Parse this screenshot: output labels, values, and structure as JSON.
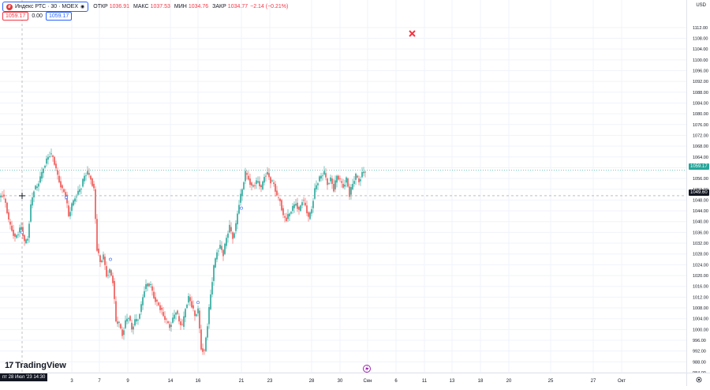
{
  "legend": {
    "symbol": "Индекс РТС · 30 · MOEX",
    "ohlc": [
      {
        "k": "ОТКР",
        "v": "1036.91"
      },
      {
        "k": "МАКС",
        "v": "1037.53"
      },
      {
        "k": "МИН",
        "v": "1034.76"
      },
      {
        "k": "ЗАКР",
        "v": "1034.77"
      }
    ],
    "change": "−2.14 (−0.21%)",
    "row2": {
      "price_red": "1059.17",
      "zero": "0.00",
      "price_blue": "1059.17"
    }
  },
  "currency": "USD",
  "logo_text": "TradingView",
  "crosshair_date": "пт 28 Июл '23  14:30",
  "last_price_tag": "1059.17",
  "crosshair_price_tag": "1049.60",
  "colors": {
    "up": "#26a69a",
    "down": "#ef5350",
    "accent": "#2962ff"
  },
  "chart_data": {
    "type": "candlestick",
    "ylim": [
      984,
      1114
    ],
    "yticks": [
      "1112.00",
      "1108.00",
      "1104.00",
      "1100.00",
      "1096.00",
      "1092.00",
      "1088.00",
      "1084.00",
      "1080.00",
      "1076.00",
      "1072.00",
      "1068.00",
      "1064.00",
      "1060.00",
      "1056.00",
      "1052.00",
      "1048.00",
      "1044.00",
      "1040.00",
      "1036.00",
      "1032.00",
      "1028.00",
      "1024.00",
      "1020.00",
      "1016.00",
      "1012.00",
      "1008.00",
      "1004.00",
      "1000.00",
      "996.00",
      "992.00",
      "988.00",
      "984.00"
    ],
    "xticks": [
      "3",
      "7",
      "9",
      "14",
      "16",
      "21",
      "23",
      "28",
      "30",
      "Сен",
      "6",
      "11",
      "13",
      "18",
      "20",
      "25",
      "27",
      "Окт"
    ],
    "path_points": [
      [
        0,
        1049
      ],
      [
        4,
        1050
      ],
      [
        8,
        1047
      ],
      [
        12,
        1040
      ],
      [
        16,
        1037
      ],
      [
        20,
        1034
      ],
      [
        24,
        1036
      ],
      [
        28,
        1038
      ],
      [
        32,
        1032
      ],
      [
        36,
        1034
      ],
      [
        40,
        1046
      ],
      [
        44,
        1052
      ],
      [
        48,
        1053
      ],
      [
        52,
        1056
      ],
      [
        56,
        1060
      ],
      [
        60,
        1063
      ],
      [
        64,
        1065
      ],
      [
        68,
        1064
      ],
      [
        72,
        1059
      ],
      [
        76,
        1055
      ],
      [
        80,
        1052
      ],
      [
        84,
        1050
      ],
      [
        88,
        1042
      ],
      [
        92,
        1046
      ],
      [
        96,
        1049
      ],
      [
        100,
        1051
      ],
      [
        104,
        1053
      ],
      [
        108,
        1057
      ],
      [
        112,
        1058
      ],
      [
        116,
        1056
      ],
      [
        120,
        1052
      ],
      [
        124,
        1030
      ],
      [
        128,
        1025
      ],
      [
        132,
        1027
      ],
      [
        136,
        1020
      ],
      [
        140,
        1022
      ],
      [
        144,
        1018
      ],
      [
        148,
        1003
      ],
      [
        152,
        1002
      ],
      [
        156,
        998
      ],
      [
        160,
        1003
      ],
      [
        164,
        1005
      ],
      [
        168,
        1000
      ],
      [
        172,
        1003
      ],
      [
        176,
        1004
      ],
      [
        180,
        1009
      ],
      [
        184,
        1015
      ],
      [
        188,
        1017
      ],
      [
        192,
        1016
      ],
      [
        196,
        1012
      ],
      [
        200,
        1010
      ],
      [
        204,
        1008
      ],
      [
        208,
        1005
      ],
      [
        212,
        1003
      ],
      [
        216,
        1001
      ],
      [
        220,
        1004
      ],
      [
        224,
        1007
      ],
      [
        228,
        1003
      ],
      [
        232,
        1001
      ],
      [
        236,
        1008
      ],
      [
        240,
        1012
      ],
      [
        244,
        1009
      ],
      [
        248,
        1005
      ],
      [
        252,
        1007
      ],
      [
        256,
        993
      ],
      [
        260,
        992
      ],
      [
        264,
        1002
      ],
      [
        268,
        1013
      ],
      [
        272,
        1023
      ],
      [
        276,
        1029
      ],
      [
        280,
        1031
      ],
      [
        284,
        1028
      ],
      [
        288,
        1034
      ],
      [
        292,
        1038
      ],
      [
        296,
        1034
      ],
      [
        300,
        1039
      ],
      [
        304,
        1047
      ],
      [
        308,
        1052
      ],
      [
        312,
        1058
      ],
      [
        316,
        1056
      ],
      [
        320,
        1053
      ],
      [
        324,
        1054
      ],
      [
        328,
        1055
      ],
      [
        332,
        1052
      ],
      [
        336,
        1057
      ],
      [
        340,
        1058
      ],
      [
        344,
        1055
      ],
      [
        348,
        1054
      ],
      [
        352,
        1049
      ],
      [
        356,
        1048
      ],
      [
        360,
        1042
      ],
      [
        364,
        1041
      ],
      [
        368,
        1043
      ],
      [
        372,
        1045
      ],
      [
        376,
        1047
      ],
      [
        380,
        1044
      ],
      [
        384,
        1048
      ],
      [
        388,
        1046
      ],
      [
        392,
        1041
      ],
      [
        396,
        1045
      ],
      [
        400,
        1052
      ],
      [
        404,
        1055
      ],
      [
        408,
        1057
      ],
      [
        412,
        1058
      ],
      [
        416,
        1054
      ],
      [
        420,
        1056
      ],
      [
        424,
        1052
      ],
      [
        428,
        1057
      ],
      [
        432,
        1055
      ],
      [
        436,
        1053
      ],
      [
        440,
        1056
      ],
      [
        444,
        1050
      ],
      [
        448,
        1054
      ],
      [
        452,
        1057
      ],
      [
        456,
        1055
      ],
      [
        460,
        1058
      ],
      [
        464,
        1059
      ]
    ]
  }
}
